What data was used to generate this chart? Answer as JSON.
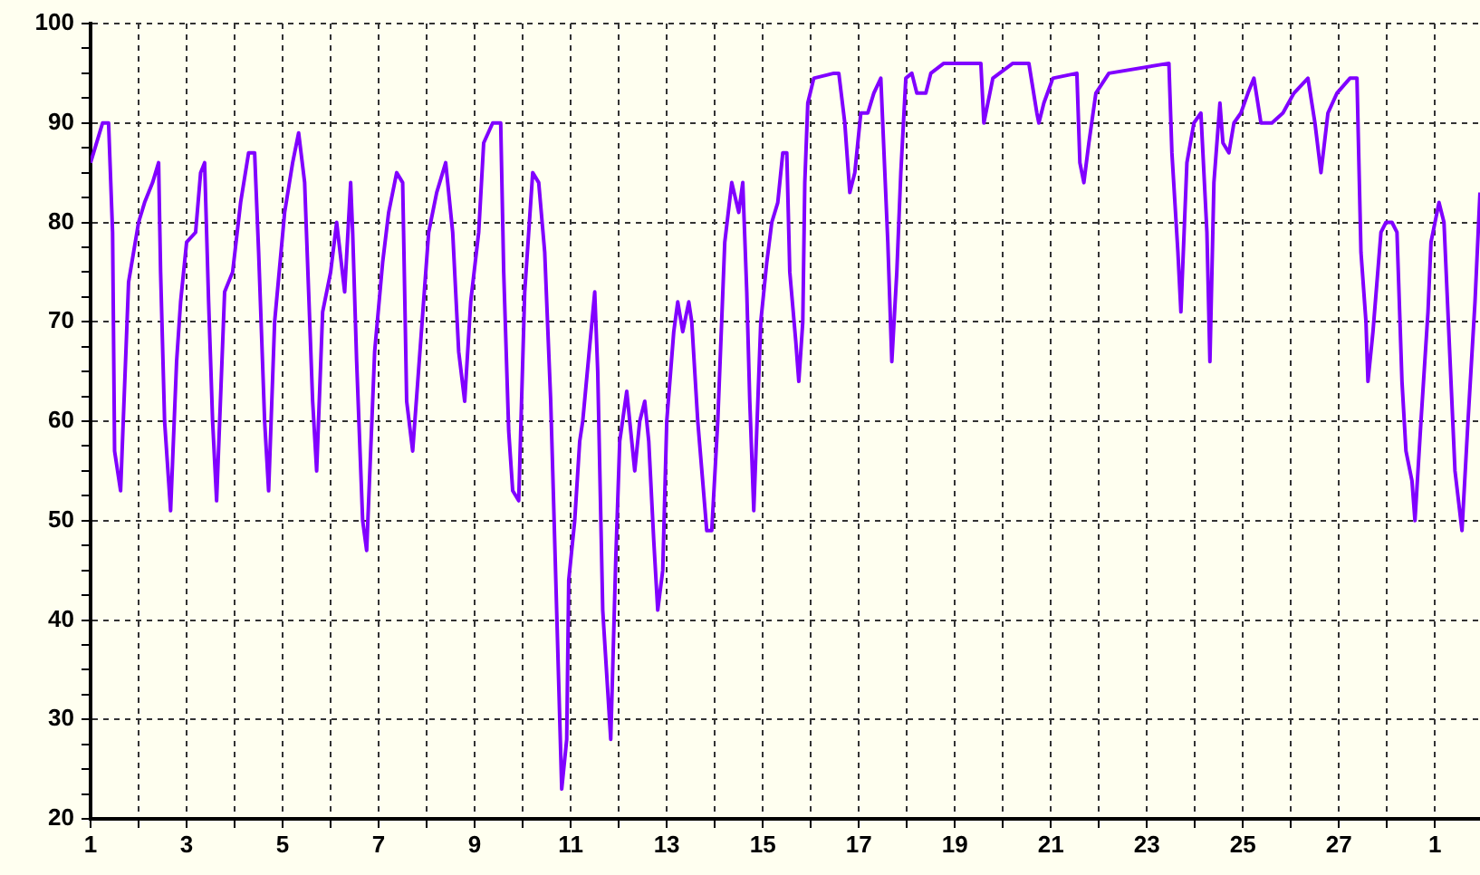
{
  "chart_data": {
    "type": "line",
    "color": "#8000ff",
    "grid": true,
    "xlim": [
      "--02-01",
      "--03-01T22:30"
    ],
    "xticks": [
      {
        "value": "--02-01",
        "label": "1"
      },
      {
        "value": "--02-02",
        "label": null
      },
      {
        "value": "--02-03",
        "label": "3"
      },
      {
        "value": "--02-04",
        "label": null
      },
      {
        "value": "--02-05",
        "label": "5"
      },
      {
        "value": "--02-06",
        "label": null
      },
      {
        "value": "--02-07",
        "label": "7"
      },
      {
        "value": "--02-08",
        "label": null
      },
      {
        "value": "--02-09",
        "label": "9"
      },
      {
        "value": "--02-10",
        "label": null
      },
      {
        "value": "--02-11",
        "label": "11"
      },
      {
        "value": "--02-12",
        "label": null
      },
      {
        "value": "--02-13",
        "label": "13"
      },
      {
        "value": "--02-14",
        "label": null
      },
      {
        "value": "--02-15",
        "label": "15"
      },
      {
        "value": "--02-16",
        "label": null
      },
      {
        "value": "--02-17",
        "label": "17"
      },
      {
        "value": "--02-18",
        "label": null
      },
      {
        "value": "--02-19",
        "label": "19"
      },
      {
        "value": "--02-20",
        "label": null
      },
      {
        "value": "--02-21",
        "label": "21"
      },
      {
        "value": "--02-22",
        "label": null
      },
      {
        "value": "--02-23",
        "label": "23"
      },
      {
        "value": "--02-24",
        "label": null
      },
      {
        "value": "--02-25",
        "label": "25"
      },
      {
        "value": "--02-26",
        "label": null
      },
      {
        "value": "--02-27",
        "label": "27"
      },
      {
        "value": "--02-28",
        "label": null
      },
      {
        "value": "--03-01",
        "label": "1"
      }
    ],
    "ylim": [
      20,
      100
    ],
    "yticks": [
      20,
      {
        "value": 22.5,
        "label": null
      },
      {
        "value": 25,
        "label": null
      },
      {
        "value": 27.5,
        "label": null
      },
      30,
      {
        "value": 32.5,
        "label": null
      },
      {
        "value": 35,
        "label": null
      },
      {
        "value": 37.5,
        "label": null
      },
      40,
      {
        "value": 42.5,
        "label": null
      },
      {
        "value": 45,
        "label": null
      },
      {
        "value": 47.5,
        "label": null
      },
      50,
      {
        "value": 52.5,
        "label": null
      },
      {
        "value": 55,
        "label": null
      },
      {
        "value": 57.5,
        "label": null
      },
      60,
      {
        "value": 62.5,
        "label": null
      },
      {
        "value": 65,
        "label": null
      },
      {
        "value": 67.5,
        "label": null
      },
      70,
      {
        "value": 72.5,
        "label": null
      },
      {
        "value": 75,
        "label": null
      },
      {
        "value": 77.5,
        "label": null
      },
      80,
      {
        "value": 82.5,
        "label": null
      },
      {
        "value": 85,
        "label": null
      },
      {
        "value": 87.5,
        "label": null
      },
      90,
      {
        "value": 92.5,
        "label": null
      },
      {
        "value": 95,
        "label": null
      },
      {
        "value": 97.5,
        "label": null
      },
      100
    ],
    "x": [
      "--02-01T00:00",
      "--02-01T06:00",
      "--02-01T09:00",
      "--02-01T11:00",
      "--02-01T12:00",
      "--02-01T15:00",
      "--02-01T19:00",
      "--02-02T00:00",
      "--02-02T03:00",
      "--02-02T07:00",
      "--02-02T10:00",
      "--02-02T11:00",
      "--02-02T13:00",
      "--02-02T16:00",
      "--02-02T19:00",
      "--02-02T21:00",
      "--02-03T00:00",
      "--02-03T04:30",
      "--02-03T07:00",
      "--02-03T09:00",
      "--02-03T11:00",
      "--02-03T13:00",
      "--02-03T15:00",
      "--02-03T19:00",
      "--02-03T23:00",
      "--02-04T03:00",
      "--02-04T07:00",
      "--02-04T10:00",
      "--02-04T12:00",
      "--02-04T15:00",
      "--02-04T17:00",
      "--02-04T20:00",
      "--02-05T01:00",
      "--02-05T05:00",
      "--02-05T08:00",
      "--02-05T11:00",
      "--02-05T13:00",
      "--02-05T15:00",
      "--02-05T17:00",
      "--02-05T20:00",
      "--02-06T00:00",
      "--02-06T03:00",
      "--02-06T07:00",
      "--02-06T10:00",
      "--02-06T11:00",
      "--02-06T13:00",
      "--02-06T16:00",
      "--02-06T18:00",
      "--02-06T22:00",
      "--02-07T02:00",
      "--02-07T05:00",
      "--02-07T09:00",
      "--02-07T12:00",
      "--02-07T14:00",
      "--02-07T17:00",
      "--02-07T21:00",
      "--02-08T01:00",
      "--02-08T05:00",
      "--02-08T09:30",
      "--02-08T13:00",
      "--02-08T16:00",
      "--02-08T19:00",
      "--02-08T22:00",
      "--02-09T02:00",
      "--02-09T04:30",
      "--02-09T09:00",
      "--02-09T13:00",
      "--02-09T14:30",
      "--02-09T17:00",
      "--02-09T19:00",
      "--02-09T22:00",
      "--02-10T01:00",
      "--02-10T05:00",
      "--02-10T08:00",
      "--02-10T11:00",
      "--02-10T14:00",
      "--02-10T15:00",
      "--02-10T19:30",
      "--02-10T22:00",
      "--02-10T23:00",
      "--02-11T02:00",
      "--02-11T04:30",
      "--02-11T06:00",
      "--02-11T12:00",
      "--02-11T13:30",
      "--02-11T16:00",
      "--02-11T20:00",
      "--02-11T22:30",
      "--02-12T00:30",
      "--02-12T04:00",
      "--02-12T08:00",
      "--02-12T10:30",
      "--02-12T13:00",
      "--02-12T15:00",
      "--02-12T17:30",
      "--02-12T19:30",
      "--02-12T22:00",
      "--02-13T00:00",
      "--02-13T03:30",
      "--02-13T05:30",
      "--02-13T08:00",
      "--02-13T11:00",
      "--02-13T12:30",
      "--02-13T15:30",
      "--02-13T20:00",
      "--02-13T22:30",
      "--02-14T01:30",
      "--02-14T05:00",
      "--02-14T08:30",
      "--02-14T12:00",
      "--02-14T14:00",
      "--02-14T16:00",
      "--02-14T17:30",
      "--02-14T19:30",
      "--02-14T23:00",
      "--02-15T02:00",
      "--02-15T04:30",
      "--02-15T07:30",
      "--02-15T10:00",
      "--02-15T12:00",
      "--02-15T13:30",
      "--02-15T16:30",
      "--02-15T18:00",
      "--02-15T20:00",
      "--02-15T21:00",
      "--02-15T22:30",
      "--02-16T01:30",
      "--02-16T11:30",
      "--02-16T14:00",
      "--02-16T17:00",
      "--02-16T19:30",
      "--02-16T22:00",
      "--02-17T01:00",
      "--02-17T04:30",
      "--02-17T07:30",
      "--02-17T11:00",
      "--02-17T14:30",
      "--02-17T16:30",
      "--02-17T19:00",
      "--02-17T21:00",
      "--02-17T23:30",
      "--02-18T02:30",
      "--02-18T05:00",
      "--02-18T09:30",
      "--02-18T12:00",
      "--02-18T18:30",
      "--02-19T13:00",
      "--02-19T14:30",
      "--02-19T16:30",
      "--02-19T19:00",
      "--02-20T05:00",
      "--02-20T13:00",
      "--02-20T17:00",
      "--02-20T18:00",
      "--02-20T20:30",
      "--02-21T01:00",
      "--02-21T13:00",
      "--02-21T14:30",
      "--02-21T16:30",
      "--02-21T19:00",
      "--02-21T22:30",
      "--02-22T05:00",
      "--02-23T11:00",
      "--02-23T12:30",
      "--02-23T15:30",
      "--02-23T17:00",
      "--02-23T20:00",
      "--02-23T23:30",
      "--02-24T03:00",
      "--02-24T06:00",
      "--02-24T07:30",
      "--02-24T09:30",
      "--02-24T12:30",
      "--02-24T14:00",
      "--02-24T17:00",
      "--02-24T19:30",
      "--02-24T23:00",
      "--02-25T02:30",
      "--02-25T05:30",
      "--02-25T09:00",
      "--02-25T14:30",
      "--02-25T20:00",
      "--02-26T01:30",
      "--02-26T08:30",
      "--02-26T12:00",
      "--02-26T15:00",
      "--02-26T18:30",
      "--02-26T23:00",
      "--02-27T05:30",
      "--02-27T09:00",
      "--02-27T11:00",
      "--02-27T13:30",
      "--02-27T14:30",
      "--02-27T17:00",
      "--02-27T21:00",
      "--02-27T23:30",
      "--02-28T02:30",
      "--02-28T05:00",
      "--02-28T07:30",
      "--02-28T09:30",
      "--02-28T12:30",
      "--02-28T14:00",
      "--02-28T17:00",
      "--02-28T20:30",
      "--02-28T22:00",
      "--03-01T02:00",
      "--03-01T04:30",
      "--03-01T08:00",
      "--03-01T10:00",
      "--03-01T13:30",
      "--03-01T16:30",
      "--03-01T20:00",
      "--03-01T22:30"
    ],
    "values": [
      86,
      90,
      90,
      79,
      57,
      53,
      74,
      80,
      82,
      84,
      86,
      75,
      60,
      51,
      66,
      72,
      78,
      79,
      85,
      86,
      72,
      60,
      52,
      73,
      75,
      82,
      87,
      87,
      77,
      60,
      53,
      70,
      81,
      86,
      89,
      84,
      73,
      62,
      55,
      71,
      75,
      80,
      73,
      84,
      79,
      66,
      50,
      47,
      67,
      76,
      81,
      85,
      84,
      62,
      57,
      68,
      79,
      83,
      86,
      79,
      67,
      62,
      72,
      79,
      88,
      90,
      90,
      75,
      59,
      53,
      52,
      73,
      85,
      84,
      77,
      62,
      55,
      23,
      28,
      44,
      50,
      58,
      60,
      73,
      65,
      41,
      28,
      46,
      58,
      63,
      55,
      60,
      62,
      58,
      48,
      41,
      45,
      60,
      69,
      72,
      69,
      72,
      70,
      60,
      49,
      49,
      60,
      78,
      84,
      81,
      84,
      73,
      62,
      51,
      70,
      76,
      80,
      82,
      87,
      87,
      75,
      68,
      64,
      70,
      84,
      92,
      94.5,
      95,
      95,
      90,
      83,
      85,
      91,
      91,
      93,
      94.5,
      78,
      66,
      75,
      85,
      94.5,
      95,
      93,
      93,
      95,
      96,
      96,
      90,
      92,
      94.5,
      96,
      96,
      91,
      90,
      92,
      94.5,
      95,
      86,
      84,
      88,
      93,
      95,
      96,
      87,
      77,
      71,
      86,
      90,
      91,
      79,
      66,
      84,
      92,
      88,
      87,
      90,
      91,
      93,
      94.5,
      90,
      90,
      91,
      93,
      94.5,
      90,
      85,
      91,
      93,
      94.5,
      94.5,
      77,
      70,
      64,
      69,
      79,
      80,
      80,
      79,
      64,
      57,
      54,
      50,
      60,
      71,
      78,
      82,
      80,
      64,
      55,
      49,
      60,
      72,
      83
    ]
  }
}
